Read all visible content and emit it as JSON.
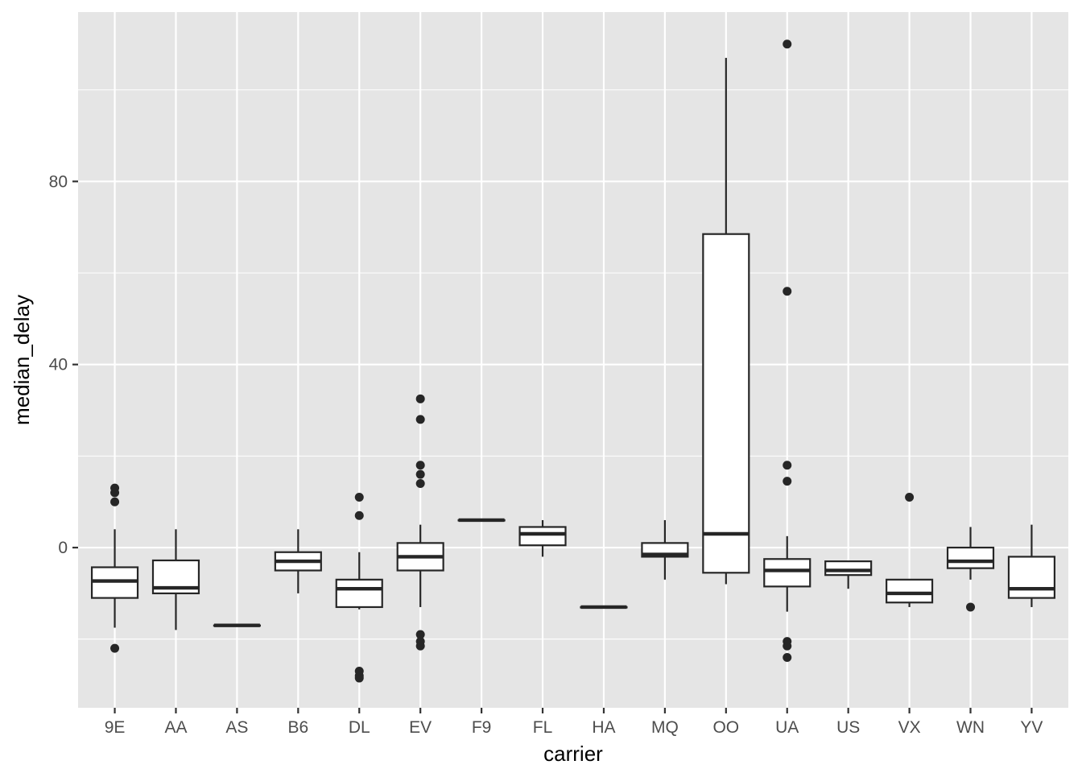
{
  "chart_data": {
    "type": "boxplot",
    "xlabel": "carrier",
    "ylabel": "median_delay",
    "ylim": [
      -35,
      117
    ],
    "yticks": [
      0,
      40,
      80
    ],
    "y_minor_gridlines": [
      -20,
      20,
      60,
      100
    ],
    "grid": true,
    "colors": {
      "panel": "#e5e5e5",
      "grid": "#ffffff",
      "box_fill": "#ffffff",
      "stroke": "#262626",
      "tick_text": "#4d4d4d"
    },
    "boxes": [
      {
        "category": "9E",
        "lower_whisker": -17.5,
        "q1": -11,
        "median": -7.3,
        "q3": -4.3,
        "upper_whisker": 4,
        "outliers": [
          13,
          12,
          10,
          -22
        ]
      },
      {
        "category": "AA",
        "lower_whisker": -18,
        "q1": -10,
        "median": -8.8,
        "q3": -2.8,
        "upper_whisker": 4,
        "outliers": []
      },
      {
        "category": "AS",
        "lower_whisker": -17,
        "q1": -17,
        "median": -17,
        "q3": -17,
        "upper_whisker": -17,
        "outliers": []
      },
      {
        "category": "B6",
        "lower_whisker": -10,
        "q1": -5,
        "median": -3,
        "q3": -1,
        "upper_whisker": 4,
        "outliers": []
      },
      {
        "category": "DL",
        "lower_whisker": -13.5,
        "q1": -13,
        "median": -9,
        "q3": -7,
        "upper_whisker": -1,
        "outliers": [
          11,
          7,
          -27,
          -28,
          -28.5
        ]
      },
      {
        "category": "EV",
        "lower_whisker": -13,
        "q1": -5,
        "median": -2,
        "q3": 1,
        "upper_whisker": 5,
        "outliers": [
          32.5,
          28,
          18,
          16,
          14,
          -19,
          -20.5,
          -21.5
        ]
      },
      {
        "category": "F9",
        "lower_whisker": 6,
        "q1": 6,
        "median": 6,
        "q3": 6,
        "upper_whisker": 6,
        "outliers": []
      },
      {
        "category": "FL",
        "lower_whisker": -2,
        "q1": 0.5,
        "median": 3,
        "q3": 4.5,
        "upper_whisker": 6,
        "outliers": []
      },
      {
        "category": "HA",
        "lower_whisker": -13,
        "q1": -13,
        "median": -13,
        "q3": -13,
        "upper_whisker": -13,
        "outliers": []
      },
      {
        "category": "MQ",
        "lower_whisker": -7,
        "q1": -2,
        "median": -1.5,
        "q3": 1,
        "upper_whisker": 6,
        "outliers": []
      },
      {
        "category": "OO",
        "lower_whisker": -8,
        "q1": -5.5,
        "median": 3,
        "q3": 68.5,
        "upper_whisker": 107,
        "outliers": []
      },
      {
        "category": "UA",
        "lower_whisker": -14,
        "q1": -8.5,
        "median": -5,
        "q3": -2.5,
        "upper_whisker": 2.5,
        "outliers": [
          110,
          56,
          18,
          14.5,
          -20.5,
          -21.5,
          -24
        ]
      },
      {
        "category": "US",
        "lower_whisker": -9,
        "q1": -6,
        "median": -5,
        "q3": -3,
        "upper_whisker": -3,
        "outliers": []
      },
      {
        "category": "VX",
        "lower_whisker": -13,
        "q1": -12,
        "median": -10,
        "q3": -7,
        "upper_whisker": -7,
        "outliers": [
          11
        ]
      },
      {
        "category": "WN",
        "lower_whisker": -7,
        "q1": -4.5,
        "median": -3,
        "q3": 0,
        "upper_whisker": 4.5,
        "outliers": [
          -13
        ]
      },
      {
        "category": "YV",
        "lower_whisker": -13,
        "q1": -11,
        "median": -9,
        "q3": -2,
        "upper_whisker": 5,
        "outliers": []
      }
    ]
  }
}
